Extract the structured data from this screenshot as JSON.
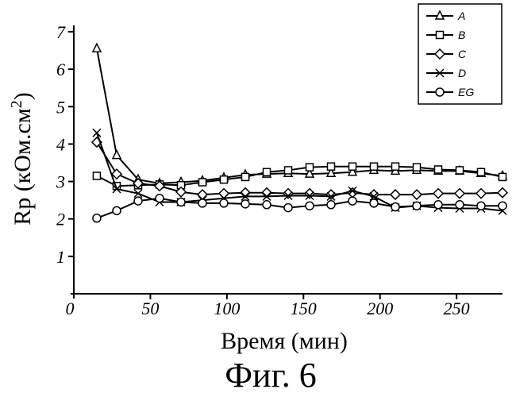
{
  "chart_data": {
    "type": "line",
    "title": "",
    "caption": "Фиг. 6",
    "xlabel": "Время (мин)",
    "ylabel": "Rp (кОм.см",
    "ylabel_sup": "2",
    "ylabel_close": ")",
    "xlim": [
      0,
      280
    ],
    "ylim": [
      0,
      7
    ],
    "xticks": [
      0,
      50,
      100,
      150,
      200,
      250
    ],
    "yticks": [
      1,
      2,
      3,
      4,
      5,
      6,
      7
    ],
    "legend_position": "top-right",
    "x": [
      15,
      28,
      42,
      56,
      70,
      84,
      98,
      112,
      126,
      140,
      154,
      168,
      182,
      196,
      210,
      224,
      238,
      252,
      266,
      280
    ],
    "series": [
      {
        "name": "A",
        "marker": "triangle",
        "values": [
          6.55,
          3.7,
          3.05,
          2.95,
          2.98,
          3.02,
          3.1,
          3.18,
          3.2,
          3.22,
          3.2,
          3.22,
          3.25,
          3.3,
          3.28,
          3.3,
          3.28,
          3.28,
          3.22,
          3.15
        ]
      },
      {
        "name": "B",
        "marker": "square",
        "values": [
          3.15,
          2.88,
          2.9,
          2.92,
          2.9,
          2.98,
          3.05,
          3.12,
          3.25,
          3.3,
          3.38,
          3.4,
          3.4,
          3.4,
          3.4,
          3.38,
          3.32,
          3.3,
          3.25,
          3.12
        ]
      },
      {
        "name": "C",
        "marker": "diamond",
        "values": [
          4.05,
          3.2,
          2.95,
          2.88,
          2.72,
          2.65,
          2.68,
          2.7,
          2.7,
          2.68,
          2.68,
          2.65,
          2.7,
          2.65,
          2.65,
          2.65,
          2.68,
          2.68,
          2.68,
          2.7
        ]
      },
      {
        "name": "D",
        "marker": "x",
        "values": [
          4.3,
          2.8,
          2.68,
          2.45,
          2.45,
          2.5,
          2.55,
          2.6,
          2.6,
          2.62,
          2.62,
          2.6,
          2.75,
          2.6,
          2.3,
          2.35,
          2.3,
          2.28,
          2.28,
          2.22
        ]
      },
      {
        "name": "EG",
        "marker": "circle",
        "values": [
          2.02,
          2.22,
          2.48,
          2.55,
          2.45,
          2.42,
          2.42,
          2.4,
          2.38,
          2.3,
          2.35,
          2.38,
          2.48,
          2.42,
          2.32,
          2.35,
          2.38,
          2.38,
          2.35,
          2.35
        ]
      }
    ]
  }
}
